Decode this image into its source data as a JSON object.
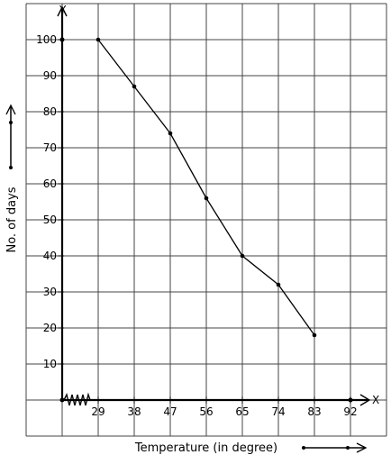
{
  "chart_data": {
    "type": "line",
    "xlabel": "Temperature (in degree)",
    "ylabel": "No. of days",
    "x_axis_letter": "X",
    "y_axis_letter": "Y",
    "x_ticks": [
      29,
      38,
      47,
      56,
      65,
      74,
      83,
      92
    ],
    "y_ticks": [
      10,
      20,
      30,
      40,
      50,
      60,
      70,
      80,
      90,
      100
    ],
    "x_axis_break": true,
    "grid": true,
    "series": [
      {
        "x": [
          29,
          38,
          47,
          56,
          65,
          74,
          83
        ],
        "y": [
          100,
          87,
          74,
          56,
          40,
          32,
          18
        ]
      }
    ]
  }
}
